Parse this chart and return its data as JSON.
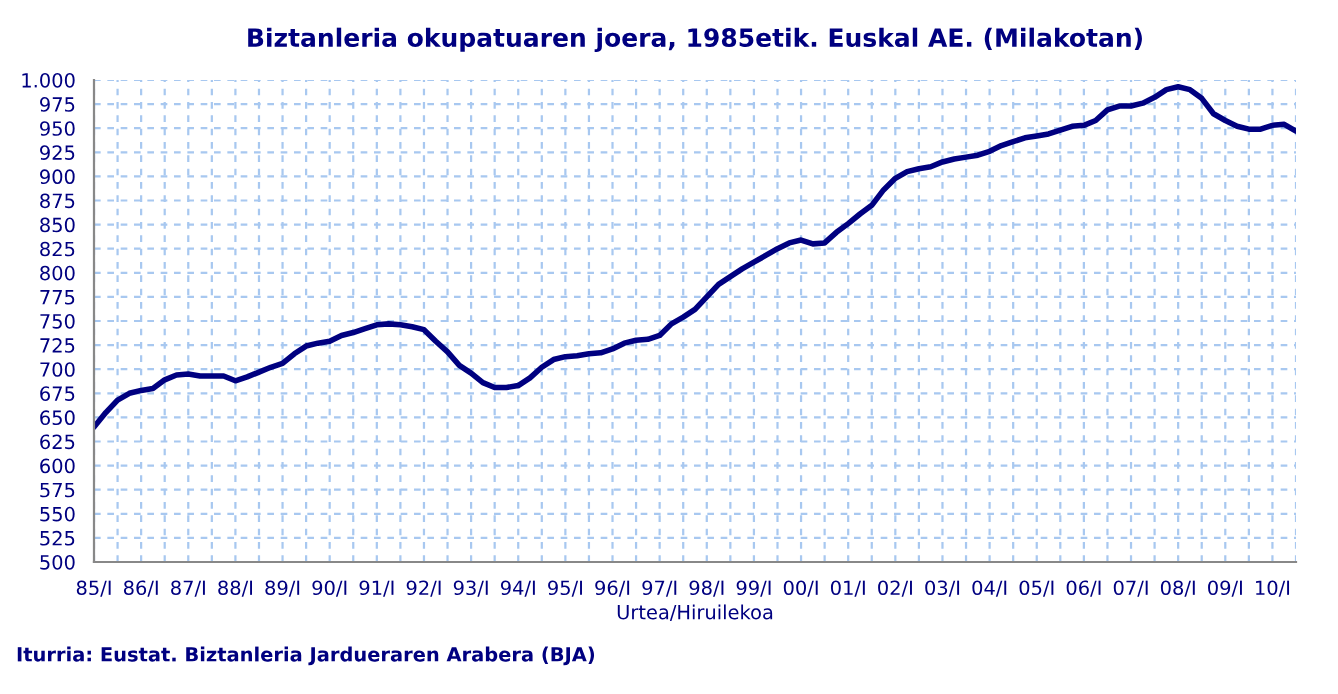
{
  "chart_data": {
    "type": "line",
    "title": "Biztanleria okupatuaren joera, 1985etik. Euskal AE. (Milakotan)",
    "xlabel": "Urtea/Hiruilekoa",
    "annotations": [
      "Iturria: Eustat. Biztanleria Jardueraren Arabera (BJA)"
    ],
    "categories": [
      "85/I",
      null,
      null,
      null,
      "86/I",
      null,
      null,
      null,
      "87/I",
      null,
      null,
      null,
      "88/I",
      null,
      null,
      null,
      "89/I",
      null,
      null,
      null,
      "90/I",
      null,
      null,
      null,
      "91/I",
      null,
      null,
      null,
      "92/I",
      null,
      null,
      null,
      "93/I",
      null,
      null,
      null,
      "94/I",
      null,
      null,
      null,
      "95/I",
      null,
      null,
      null,
      "96/I",
      null,
      null,
      null,
      "97/I",
      null,
      null,
      null,
      "98/I",
      null,
      null,
      null,
      "99/I",
      null,
      null,
      null,
      "00/I",
      null,
      null,
      null,
      "01/I",
      null,
      null,
      null,
      "02/I",
      null,
      null,
      null,
      "03/I",
      null,
      null,
      null,
      "04/I",
      null,
      null,
      null,
      "05/I",
      null,
      null,
      null,
      "06/I",
      null,
      null,
      null,
      "07/I",
      null,
      null,
      null,
      "08/I",
      null,
      null,
      null,
      "09/I",
      null,
      null,
      null,
      "10/I",
      null,
      null
    ],
    "series": [
      {
        "color": "#000080",
        "values": [
          640,
          655,
          668,
          675,
          678,
          680,
          689,
          694,
          695,
          693,
          693,
          693,
          688,
          692,
          697,
          702,
          706,
          716,
          724,
          727,
          729,
          735,
          738,
          742,
          746,
          747,
          746,
          744,
          741,
          729,
          718,
          704,
          696,
          686,
          681,
          681,
          683,
          691,
          702,
          710,
          713,
          714,
          716,
          717,
          721,
          727,
          730,
          731,
          735,
          747,
          754,
          762,
          775,
          788,
          796,
          804,
          811,
          818,
          825,
          831,
          834,
          830,
          831,
          842,
          851,
          861,
          870,
          886,
          898,
          905,
          908,
          910,
          915,
          918,
          920,
          922,
          926,
          932,
          936,
          940,
          942,
          944,
          948,
          952,
          953,
          958,
          969,
          973,
          973,
          976,
          982,
          990,
          993,
          990,
          981,
          965,
          958,
          952,
          949,
          949,
          953,
          954,
          947
        ]
      }
    ],
    "ylim": [
      500,
      1000
    ],
    "yticks": [
      500,
      525,
      550,
      575,
      600,
      625,
      650,
      675,
      700,
      725,
      750,
      775,
      800,
      825,
      850,
      875,
      900,
      925,
      950,
      975,
      {
        "value": 1000,
        "label": "1.000"
      }
    ],
    "grid": true,
    "marker": "none",
    "line_style": "solid"
  }
}
